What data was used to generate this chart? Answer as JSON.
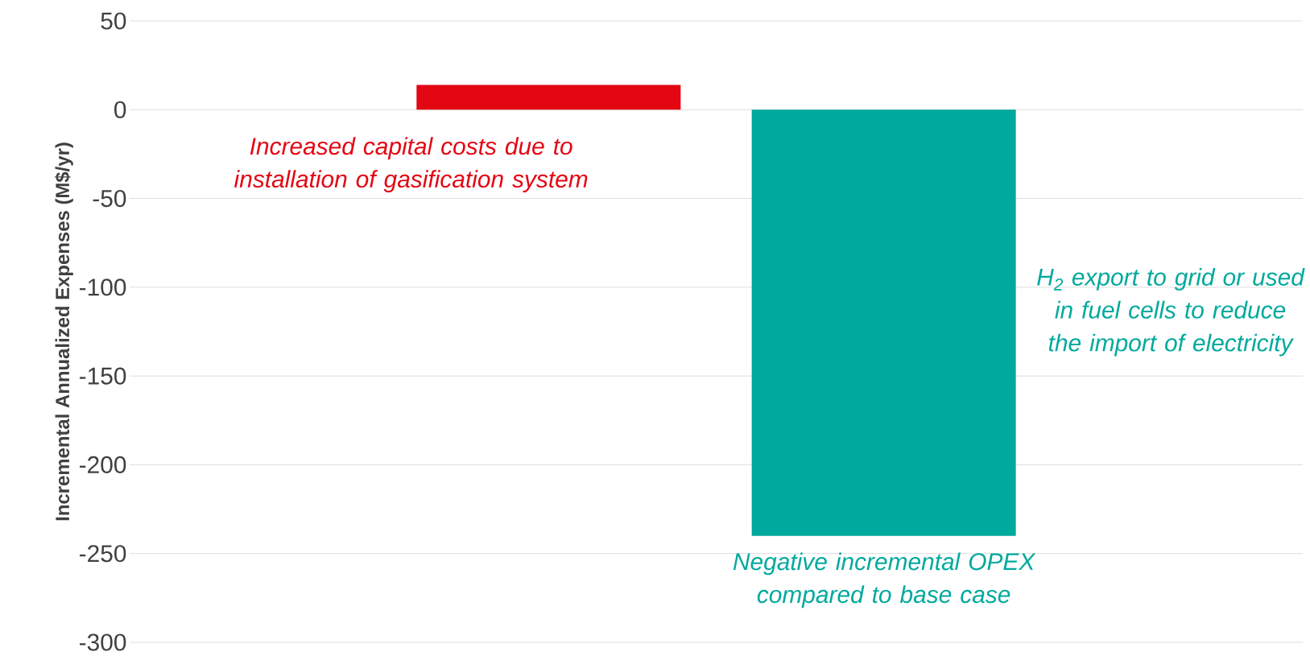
{
  "chart_data": {
    "type": "bar",
    "ylabel": "Incremental Annualized Expenses (M$/yr)",
    "categories": [
      null,
      null
    ],
    "values": [
      14,
      -240
    ],
    "colors": [
      "#e30613",
      "#00a99d"
    ],
    "ylim": [
      -300,
      50
    ],
    "yticks": [
      -300,
      -250,
      -200,
      -150,
      -100,
      -50,
      0,
      50
    ],
    "grid": "y",
    "annotations": [
      "Increased capital costs due to installation of gasification system",
      "Negative incremental OPEX compared to base case",
      "H$_{2}$ export to grid or used in fuel cells to reduce the import of electricity"
    ]
  }
}
